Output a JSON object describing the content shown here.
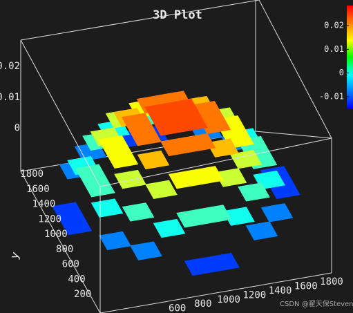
{
  "chart_data": {
    "type": "surface3d",
    "title": "3D Plot",
    "ylabel": "y",
    "x": [
      90,
      270,
      450,
      630,
      810,
      990,
      1170,
      1350,
      1530,
      1710
    ],
    "y": [
      90,
      270,
      450,
      630,
      810,
      990,
      1170,
      1350,
      1530,
      1710
    ],
    "z": [
      [
        null,
        null,
        null,
        null,
        -0.007,
        -0.007,
        null,
        null,
        null,
        null
      ],
      [
        null,
        null,
        -0.004,
        0.002,
        0.004,
        0.004,
        0.002,
        -0.004,
        null,
        null
      ],
      [
        null,
        -0.004,
        0.004,
        0.01,
        0.012,
        0.012,
        0.01,
        0.004,
        -0.004,
        null
      ],
      [
        null,
        0.002,
        0.01,
        0.015,
        0.018,
        0.018,
        0.015,
        0.01,
        0.002,
        null
      ],
      [
        -0.007,
        0.004,
        0.012,
        0.018,
        0.02,
        0.02,
        0.018,
        0.012,
        0.004,
        -0.007
      ],
      [
        -0.007,
        0.004,
        0.012,
        0.018,
        0.02,
        0.02,
        0.018,
        0.012,
        0.004,
        -0.007
      ],
      [
        null,
        0.002,
        0.01,
        0.015,
        0.018,
        0.018,
        0.015,
        0.01,
        0.002,
        null
      ],
      [
        null,
        -0.004,
        0.004,
        0.01,
        0.012,
        0.012,
        0.01,
        0.004,
        -0.004,
        null
      ],
      [
        null,
        null,
        -0.004,
        0.002,
        0.004,
        0.004,
        0.002,
        -0.004,
        null,
        null
      ],
      [
        null,
        null,
        null,
        null,
        -0.007,
        -0.007,
        null,
        null,
        null,
        null
      ]
    ],
    "xlim": [
      0,
      1800
    ],
    "ylim": [
      0,
      1800
    ],
    "zlim": [
      -0.014,
      0.027
    ],
    "xticks": [
      600,
      800,
      1000,
      1200,
      1400,
      1600,
      1800
    ],
    "yticks": [
      200,
      400,
      600,
      800,
      1000,
      1200,
      1400,
      1600,
      1800
    ],
    "zticks": [
      0,
      0.01,
      0.02
    ],
    "colormap": "jet",
    "clim": [
      -0.015,
      0.0285
    ],
    "cticks": [
      -0.01,
      0,
      0.01,
      0.02
    ],
    "watermark": "CSDN @翟天保Steven"
  }
}
